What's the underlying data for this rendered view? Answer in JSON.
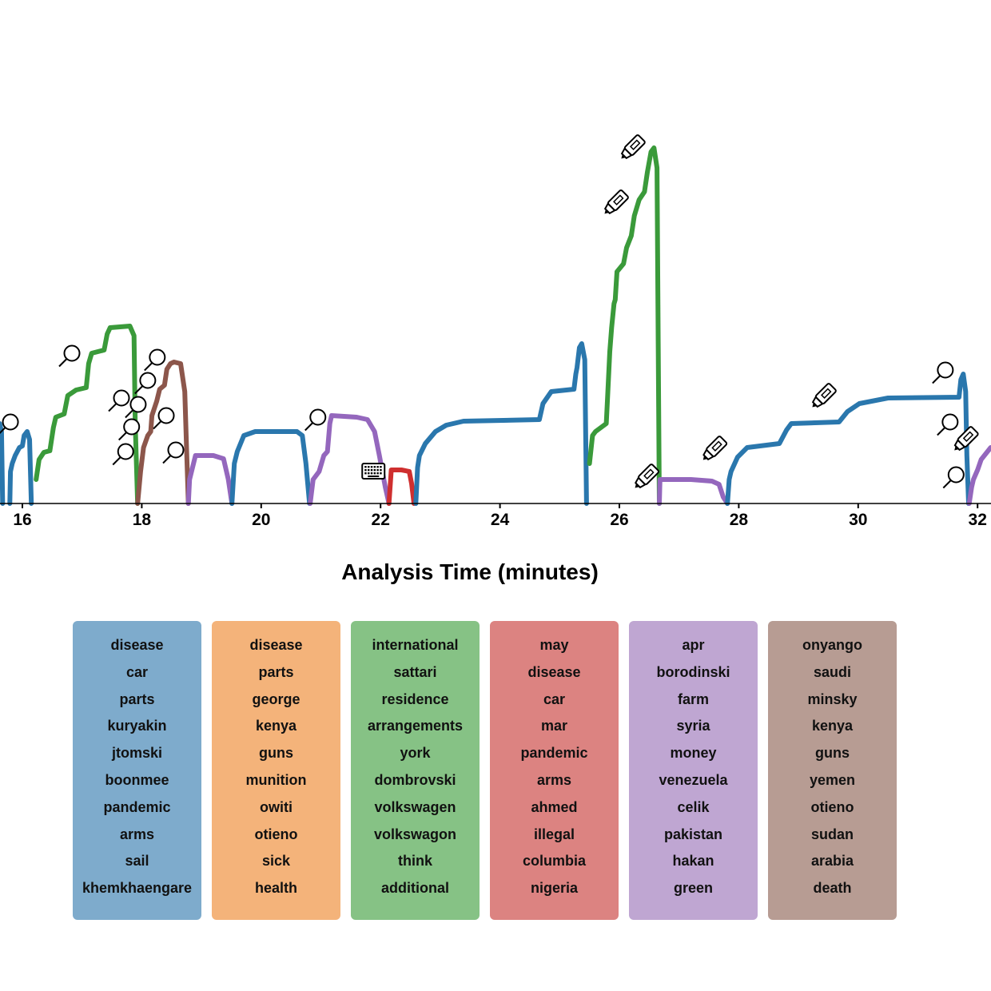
{
  "chart_data": {
    "type": "line",
    "title": "",
    "xlabel": "Analysis Time (minutes)",
    "ylabel": "",
    "xlim": [
      15.62,
      32.22
    ],
    "ylim": [
      0,
      4.6
    ],
    "grid": false,
    "xticks": [
      16,
      18,
      20,
      22,
      24,
      26,
      28,
      30,
      32
    ],
    "xtick_labels": [
      "16",
      "18",
      "20",
      "22",
      "24",
      "26",
      "28",
      "30",
      "32"
    ],
    "colors": {
      "blue": "#2a77ad",
      "orange": "#f4b37a",
      "green": "#3a9a3a",
      "red": "#cf2f2f",
      "purple": "#9467bd",
      "brown": "#8c564b"
    },
    "series": [
      {
        "name": "topic-blue",
        "color": "blue",
        "points": [
          [
            15.62,
            1.0
          ],
          [
            15.65,
            0.9
          ],
          [
            15.67,
            0
          ]
        ]
      },
      {
        "name": "topic-blue",
        "color": "blue",
        "points": [
          [
            15.79,
            0
          ],
          [
            15.8,
            0.4
          ],
          [
            15.83,
            0.5
          ],
          [
            15.88,
            0.6
          ],
          [
            15.95,
            0.7
          ],
          [
            16.0,
            0.72
          ],
          [
            16.03,
            0.85
          ],
          [
            16.08,
            0.9
          ],
          [
            16.12,
            0.8
          ],
          [
            16.15,
            0
          ]
        ]
      },
      {
        "name": "topic-green",
        "color": "green",
        "points": [
          [
            16.23,
            0.3
          ],
          [
            16.28,
            0.55
          ],
          [
            16.36,
            0.64
          ],
          [
            16.46,
            0.66
          ],
          [
            16.52,
            0.95
          ],
          [
            16.56,
            1.08
          ],
          [
            16.7,
            1.12
          ],
          [
            16.76,
            1.35
          ],
          [
            16.9,
            1.42
          ],
          [
            17.07,
            1.45
          ],
          [
            17.11,
            1.75
          ],
          [
            17.16,
            1.88
          ],
          [
            17.37,
            1.92
          ],
          [
            17.42,
            2.12
          ],
          [
            17.47,
            2.2
          ],
          [
            17.8,
            2.22
          ],
          [
            17.87,
            2.1
          ],
          [
            17.89,
            1.0
          ],
          [
            17.93,
            0
          ]
        ]
      },
      {
        "name": "topic-brown",
        "color": "brown",
        "points": [
          [
            17.93,
            0
          ],
          [
            17.98,
            0.4
          ],
          [
            18.03,
            0.7
          ],
          [
            18.1,
            0.85
          ],
          [
            18.15,
            0.9
          ],
          [
            18.17,
            1.1
          ],
          [
            18.25,
            1.28
          ],
          [
            18.3,
            1.43
          ],
          [
            18.38,
            1.48
          ],
          [
            18.42,
            1.68
          ],
          [
            18.48,
            1.75
          ],
          [
            18.54,
            1.77
          ],
          [
            18.65,
            1.75
          ],
          [
            18.72,
            1.4
          ],
          [
            18.75,
            0.7
          ],
          [
            18.78,
            0
          ]
        ]
      },
      {
        "name": "topic-purple",
        "color": "purple",
        "points": [
          [
            18.78,
            0
          ],
          [
            18.8,
            0.3
          ],
          [
            18.85,
            0.45
          ],
          [
            18.9,
            0.6
          ],
          [
            19.2,
            0.6
          ],
          [
            19.37,
            0.56
          ],
          [
            19.45,
            0.3
          ],
          [
            19.51,
            0
          ]
        ]
      },
      {
        "name": "topic-blue",
        "color": "blue",
        "points": [
          [
            19.51,
            0
          ],
          [
            19.55,
            0.5
          ],
          [
            19.6,
            0.65
          ],
          [
            19.71,
            0.85
          ],
          [
            19.9,
            0.9
          ],
          [
            20.6,
            0.9
          ],
          [
            20.69,
            0.85
          ],
          [
            20.75,
            0.5
          ],
          [
            20.81,
            0
          ]
        ]
      },
      {
        "name": "topic-purple",
        "color": "purple",
        "points": [
          [
            20.82,
            0
          ],
          [
            20.87,
            0.3
          ],
          [
            20.97,
            0.4
          ],
          [
            21.05,
            0.6
          ],
          [
            21.11,
            0.65
          ],
          [
            21.15,
            1.0
          ],
          [
            21.18,
            1.1
          ],
          [
            21.6,
            1.08
          ],
          [
            21.78,
            1.05
          ],
          [
            21.9,
            0.9
          ],
          [
            21.98,
            0.6
          ],
          [
            22.08,
            0.2
          ],
          [
            22.14,
            0
          ]
        ]
      },
      {
        "name": "topic-red",
        "color": "red",
        "points": [
          [
            22.14,
            0
          ],
          [
            22.18,
            0.42
          ],
          [
            22.35,
            0.42
          ],
          [
            22.48,
            0.4
          ],
          [
            22.52,
            0.25
          ],
          [
            22.56,
            0
          ]
        ]
      },
      {
        "name": "topic-blue",
        "color": "blue",
        "points": [
          [
            22.59,
            0
          ],
          [
            22.62,
            0.45
          ],
          [
            22.65,
            0.6
          ],
          [
            22.75,
            0.75
          ],
          [
            22.92,
            0.9
          ],
          [
            23.1,
            0.98
          ],
          [
            23.39,
            1.03
          ],
          [
            24.66,
            1.05
          ],
          [
            24.72,
            1.25
          ],
          [
            24.86,
            1.4
          ],
          [
            25.24,
            1.43
          ],
          [
            25.27,
            1.62
          ],
          [
            25.29,
            1.7
          ],
          [
            25.33,
            1.95
          ],
          [
            25.37,
            2.0
          ],
          [
            25.42,
            1.8
          ],
          [
            25.45,
            0
          ]
        ]
      },
      {
        "name": "topic-green",
        "color": "green",
        "points": [
          [
            25.5,
            0.5
          ],
          [
            25.55,
            0.85
          ],
          [
            25.6,
            0.9
          ],
          [
            25.78,
            1.0
          ],
          [
            25.8,
            1.3
          ],
          [
            25.84,
            1.9
          ],
          [
            25.87,
            2.2
          ],
          [
            25.91,
            2.5
          ],
          [
            25.93,
            2.55
          ],
          [
            25.96,
            2.9
          ],
          [
            26.07,
            3.0
          ],
          [
            26.12,
            3.2
          ],
          [
            26.2,
            3.35
          ],
          [
            26.25,
            3.6
          ],
          [
            26.33,
            3.8
          ],
          [
            26.42,
            3.9
          ],
          [
            26.47,
            4.15
          ],
          [
            26.53,
            4.4
          ],
          [
            26.58,
            4.45
          ],
          [
            26.63,
            4.2
          ],
          [
            26.65,
            2.0
          ],
          [
            26.67,
            0
          ]
        ]
      },
      {
        "name": "topic-purple",
        "color": "purple",
        "points": [
          [
            26.67,
            0
          ],
          [
            26.68,
            0.3
          ],
          [
            27.2,
            0.3
          ],
          [
            27.55,
            0.28
          ],
          [
            27.67,
            0.24
          ],
          [
            27.74,
            0.08
          ],
          [
            27.81,
            0
          ]
        ]
      },
      {
        "name": "topic-blue",
        "color": "blue",
        "points": [
          [
            27.81,
            0
          ],
          [
            27.84,
            0.3
          ],
          [
            27.87,
            0.4
          ],
          [
            27.98,
            0.58
          ],
          [
            28.14,
            0.7
          ],
          [
            28.68,
            0.75
          ],
          [
            28.8,
            0.92
          ],
          [
            28.88,
            1.0
          ],
          [
            29.68,
            1.02
          ],
          [
            29.82,
            1.15
          ],
          [
            30.02,
            1.25
          ],
          [
            30.5,
            1.32
          ],
          [
            31.69,
            1.33
          ],
          [
            31.72,
            1.55
          ],
          [
            31.76,
            1.62
          ],
          [
            31.8,
            1.4
          ],
          [
            31.82,
            0.6
          ],
          [
            31.85,
            0
          ]
        ]
      },
      {
        "name": "topic-purple",
        "color": "purple",
        "points": [
          [
            31.86,
            0
          ],
          [
            31.9,
            0.2
          ],
          [
            31.93,
            0.3
          ],
          [
            32.0,
            0.42
          ],
          [
            32.06,
            0.55
          ],
          [
            32.22,
            0.7
          ]
        ]
      }
    ],
    "annotations": [
      {
        "icon": "magnifier",
        "at": [
          15.8,
          1.02
        ]
      },
      {
        "icon": "magnifier",
        "at": [
          16.83,
          1.88
        ]
      },
      {
        "icon": "magnifier",
        "at": [
          18.26,
          1.83
        ]
      },
      {
        "icon": "magnifier",
        "at": [
          18.1,
          1.54
        ]
      },
      {
        "icon": "magnifier",
        "at": [
          17.66,
          1.32
        ]
      },
      {
        "icon": "magnifier",
        "at": [
          17.94,
          1.24
        ]
      },
      {
        "icon": "magnifier",
        "at": [
          17.83,
          0.96
        ]
      },
      {
        "icon": "magnifier",
        "at": [
          17.73,
          0.65
        ]
      },
      {
        "icon": "magnifier",
        "at": [
          18.41,
          1.1
        ]
      },
      {
        "icon": "magnifier",
        "at": [
          18.57,
          0.67
        ]
      },
      {
        "icon": "magnifier",
        "at": [
          20.95,
          1.08
        ]
      },
      {
        "icon": "magnifier",
        "at": [
          31.46,
          1.67
        ]
      },
      {
        "icon": "magnifier",
        "at": [
          31.54,
          1.02
        ]
      },
      {
        "icon": "magnifier",
        "at": [
          31.64,
          0.36
        ]
      },
      {
        "icon": "keyboard",
        "at": [
          21.88,
          0.4
        ]
      },
      {
        "icon": "highlighter",
        "at": [
          26.24,
          4.47
        ]
      },
      {
        "icon": "highlighter",
        "at": [
          25.96,
          3.78
        ]
      },
      {
        "icon": "highlighter",
        "at": [
          26.47,
          0.35
        ]
      },
      {
        "icon": "highlighter",
        "at": [
          27.61,
          0.7
        ]
      },
      {
        "icon": "highlighter",
        "at": [
          29.44,
          1.36
        ]
      },
      {
        "icon": "highlighter",
        "at": [
          31.82,
          0.82
        ]
      }
    ]
  },
  "topics": [
    {
      "color": "#7eabcc",
      "words": [
        "disease",
        "car",
        "parts",
        "kuryakin",
        "jtomski",
        "boonmee",
        "pandemic",
        "arms",
        "sail",
        "khemkhaengare"
      ]
    },
    {
      "color": "#f4b37a",
      "words": [
        "disease",
        "parts",
        "george",
        "kenya",
        "guns",
        "munition",
        "owiti",
        "otieno",
        "sick",
        "health"
      ]
    },
    {
      "color": "#86c285",
      "words": [
        "international",
        "sattari",
        "residence",
        "arrangements",
        "york",
        "dombrovski",
        "volkswagen",
        "volkswagon",
        "think",
        "additional"
      ]
    },
    {
      "color": "#dc8381",
      "words": [
        "may",
        "disease",
        "car",
        "mar",
        "pandemic",
        "arms",
        "ahmed",
        "illegal",
        "columbia",
        "nigeria"
      ]
    },
    {
      "color": "#bfa6d2",
      "words": [
        "apr",
        "borodinski",
        "farm",
        "syria",
        "money",
        "venezuela",
        "celik",
        "pakistan",
        "hakan",
        "green"
      ]
    },
    {
      "color": "#b79c93",
      "words": [
        "onyango",
        "saudi",
        "minsky",
        "kenya",
        "guns",
        "yemen",
        "otieno",
        "sudan",
        "arabia",
        "death"
      ]
    }
  ]
}
